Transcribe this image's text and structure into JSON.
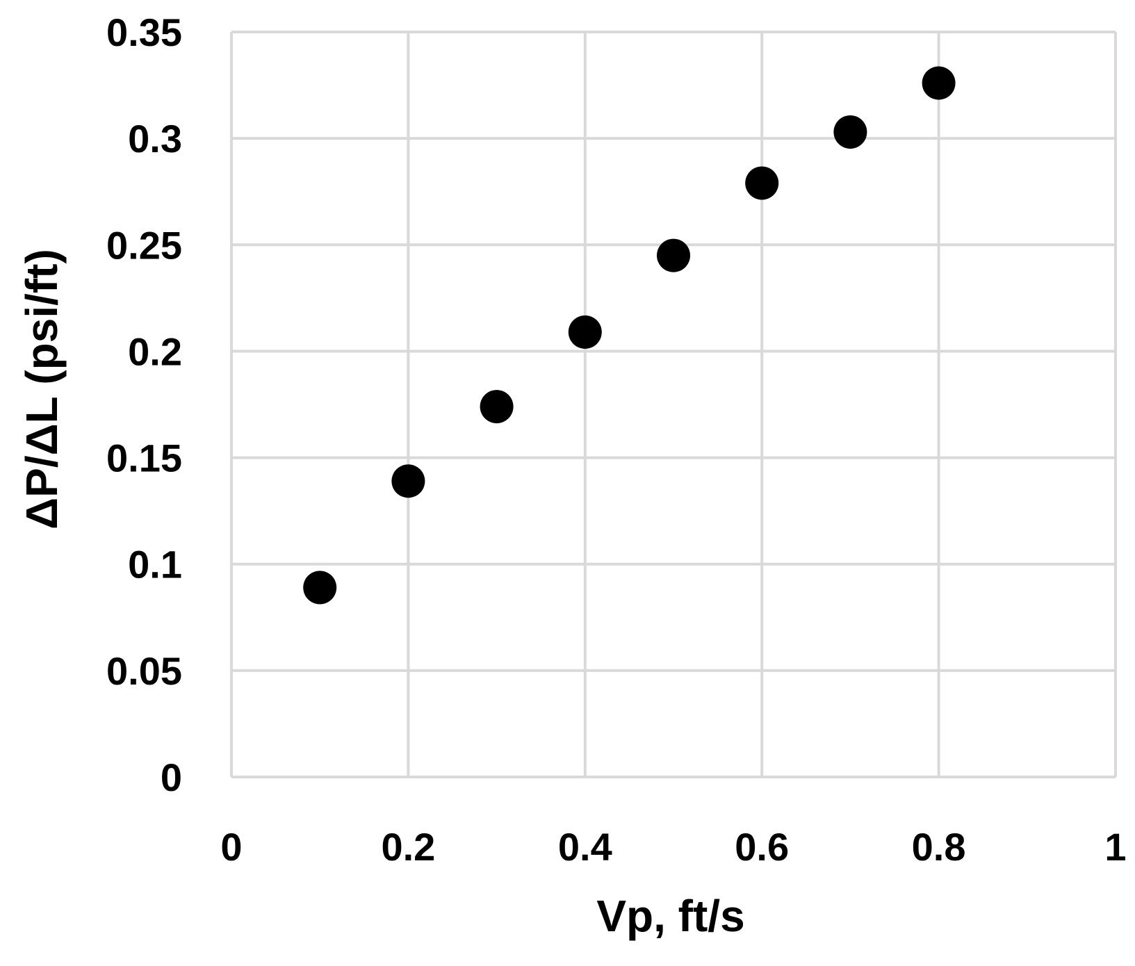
{
  "chart_data": {
    "type": "scatter",
    "title": "",
    "xlabel": "Vp, ft/s",
    "ylabel": "ΔP/ΔL (psi/ft)",
    "xlim": [
      0,
      1
    ],
    "ylim": [
      0,
      0.35
    ],
    "x_ticks": [
      0,
      0.2,
      0.4,
      0.6,
      0.8,
      1
    ],
    "x_tick_labels": [
      "0",
      "0.2",
      "0.4",
      "0.6",
      "0.8",
      "1"
    ],
    "y_ticks": [
      0,
      0.05,
      0.1,
      0.15,
      0.2,
      0.25,
      0.3,
      0.35
    ],
    "y_tick_labels": [
      "0",
      "0.05",
      "0.1",
      "0.15",
      "0.2",
      "0.25",
      "0.3",
      "0.35"
    ],
    "grid": true,
    "legend": "none",
    "series": [
      {
        "x": [
          0.1,
          0.2,
          0.3,
          0.4,
          0.5,
          0.6,
          0.7,
          0.8
        ],
        "y": [
          0.089,
          0.139,
          0.174,
          0.209,
          0.245,
          0.279,
          0.303,
          0.326
        ],
        "color": "#000000"
      }
    ],
    "colors": {
      "grid": "#d9d9d9",
      "marker": "#000000",
      "text": "#000000"
    }
  }
}
